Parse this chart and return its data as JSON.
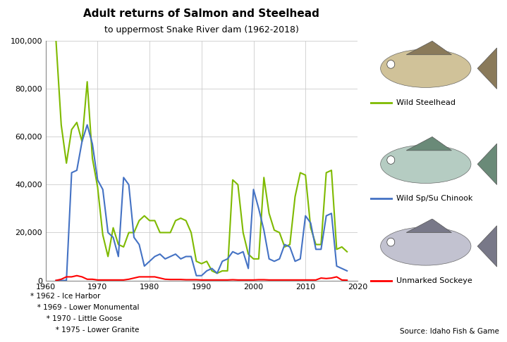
{
  "title1": "Adult returns of Salmon and Steelhead",
  "title2": "to uppermost Snake River dam (1962-2018)",
  "xlim": [
    1960,
    2020
  ],
  "ylim": [
    0,
    100000
  ],
  "yticks": [
    0,
    20000,
    40000,
    60000,
    80000,
    100000
  ],
  "ytick_labels": [
    "0",
    "20,000",
    "40,000",
    "60,000",
    "80,000",
    "100,000"
  ],
  "xticks": [
    1960,
    1970,
    1980,
    1990,
    2000,
    2010,
    2020
  ],
  "footnotes": [
    "* 1962 - Ice Harbor",
    "   * 1969 - Lower Monumental",
    "       * 1970 - Little Goose",
    "           * 1975 - Lower Granite"
  ],
  "source": "Source: Idaho Fish & Game",
  "steelhead_color": "#7FBA00",
  "chinook_color": "#4472C4",
  "sockeye_color": "#FF0000",
  "steelhead_label": "Wild Steelhead",
  "chinook_label": "Wild Sp/Su Chinook",
  "sockeye_label": "Unmarked Sockeye",
  "years": [
    1962,
    1963,
    1964,
    1965,
    1966,
    1967,
    1968,
    1969,
    1970,
    1971,
    1972,
    1973,
    1974,
    1975,
    1976,
    1977,
    1978,
    1979,
    1980,
    1981,
    1982,
    1983,
    1984,
    1985,
    1986,
    1987,
    1988,
    1989,
    1990,
    1991,
    1992,
    1993,
    1994,
    1995,
    1996,
    1997,
    1998,
    1999,
    2000,
    2001,
    2002,
    2003,
    2004,
    2005,
    2006,
    2007,
    2008,
    2009,
    2010,
    2011,
    2012,
    2013,
    2014,
    2015,
    2016,
    2017,
    2018
  ],
  "steelhead": [
    100000,
    65000,
    49000,
    63000,
    66000,
    58000,
    83000,
    51000,
    39000,
    19000,
    10000,
    22000,
    15000,
    14000,
    20000,
    20000,
    25000,
    27000,
    25000,
    25000,
    20000,
    20000,
    20000,
    25000,
    26000,
    25000,
    20000,
    8000,
    7000,
    8000,
    4000,
    3000,
    4000,
    4000,
    42000,
    40000,
    20000,
    11000,
    9000,
    9000,
    43000,
    28000,
    21000,
    20000,
    14000,
    15000,
    35000,
    45000,
    44000,
    22000,
    15000,
    15000,
    45000,
    46000,
    13000,
    14000,
    12000
  ],
  "chinook": [
    0,
    0,
    0,
    45000,
    46000,
    58000,
    65000,
    57000,
    42000,
    38000,
    20000,
    18000,
    10000,
    43000,
    40000,
    18000,
    15000,
    6000,
    8000,
    10000,
    11000,
    9000,
    10000,
    11000,
    9000,
    10000,
    10000,
    2000,
    2000,
    4000,
    5000,
    3000,
    8000,
    9000,
    12000,
    11000,
    12000,
    5000,
    38000,
    30000,
    21000,
    9000,
    8000,
    9000,
    15000,
    14000,
    8000,
    9000,
    27000,
    24000,
    13000,
    13000,
    27000,
    28000,
    6000,
    5000,
    4000
  ],
  "sockeye": [
    0,
    500,
    1500,
    1500,
    2000,
    1500,
    500,
    500,
    200,
    200,
    200,
    200,
    200,
    200,
    500,
    1000,
    1500,
    1500,
    1500,
    1500,
    1000,
    500,
    400,
    400,
    400,
    300,
    300,
    300,
    200,
    200,
    200,
    200,
    200,
    200,
    300,
    200,
    200,
    200,
    200,
    300,
    300,
    200,
    200,
    200,
    200,
    200,
    200,
    200,
    200,
    200,
    200,
    1000,
    800,
    1000,
    1500,
    200,
    100
  ]
}
